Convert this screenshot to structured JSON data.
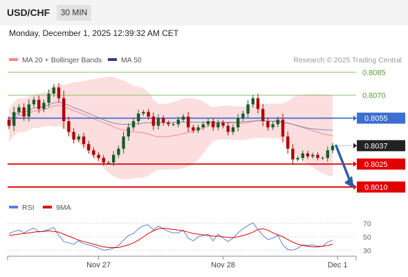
{
  "header": {
    "pair": "USD/CHF",
    "timeframe": "30 MIN",
    "timestamp": "Monday, December 1, 2025 12:39:32 AM CET"
  },
  "legend": {
    "ma20_label": "MA 20 + Bollinger Bands",
    "ma50_label": "MA 50",
    "copyright": "Research © 2025 Trading Central"
  },
  "colors": {
    "ma20": "#f28a8a",
    "band_fill": "#fcdede",
    "ma50": "#2b3f8f",
    "support": "#e00000",
    "resistance_green": "#8cc26b",
    "pivot_blue": "#3d6fd0",
    "current_price": "#222222",
    "candle_up": "#1a5c2a",
    "candle_down": "#b00000",
    "arrow": "#2f5ea8",
    "rsi": "#5b7fd6",
    "rsi_ma": "#e00000"
  },
  "chart_data": {
    "type": "candlestick",
    "price_axis": {
      "ylim": [
        0.80055,
        0.80892
      ]
    },
    "levels": [
      {
        "value": 0.8085,
        "label": "0.8085",
        "style": "resistance"
      },
      {
        "value": 0.807,
        "label": "0.8070",
        "style": "resistance"
      },
      {
        "value": 0.8055,
        "label": "0.8055",
        "style": "pivot"
      },
      {
        "value": 0.8037,
        "label": "0.8037",
        "style": "current"
      },
      {
        "value": 0.8025,
        "label": "0.8025",
        "style": "support"
      },
      {
        "value": 0.801,
        "label": "0.8010",
        "style": "support"
      }
    ],
    "x_ticks": [
      {
        "label": "Nov 27",
        "bar": 18
      },
      {
        "label": "Nov 28",
        "bar": 43
      },
      {
        "label": "Dec 1",
        "bar": 66
      }
    ],
    "closes": [
      0.805,
      0.8059,
      0.8062,
      0.8056,
      0.8064,
      0.8067,
      0.8061,
      0.8065,
      0.8071,
      0.8075,
      0.8068,
      0.8053,
      0.8046,
      0.8041,
      0.8043,
      0.8038,
      0.8034,
      0.8031,
      0.8029,
      0.8026,
      0.8026,
      0.8031,
      0.8035,
      0.8043,
      0.8049,
      0.8053,
      0.8058,
      0.8059,
      0.8056,
      0.805,
      0.8055,
      0.8052,
      0.8051,
      0.8051,
      0.8054,
      0.8056,
      0.8049,
      0.8047,
      0.8049,
      0.8051,
      0.8053,
      0.8049,
      0.8052,
      0.805,
      0.8046,
      0.8049,
      0.8055,
      0.8058,
      0.8064,
      0.8068,
      0.8061,
      0.8053,
      0.8049,
      0.8051,
      0.8054,
      0.8043,
      0.8035,
      0.8028,
      0.8029,
      0.8032,
      0.803,
      0.8031,
      0.8029,
      0.8029,
      0.8034,
      0.8037
    ],
    "projection": {
      "from": 0.8037,
      "to": 0.801
    },
    "rsi": {
      "legend": [
        "RSI",
        "9MA"
      ],
      "ylim": [
        20,
        80
      ],
      "ticks": [
        70,
        50,
        30
      ],
      "values": [
        55,
        58,
        60,
        56,
        60,
        63,
        57,
        59,
        61,
        64,
        52,
        43,
        41,
        39,
        44,
        40,
        38,
        36,
        33,
        30,
        31,
        33,
        37,
        45,
        52,
        55,
        62,
        67,
        68,
        60,
        66,
        62,
        58,
        56,
        56,
        60,
        48,
        44,
        50,
        52,
        54,
        44,
        54,
        48,
        43,
        48,
        56,
        62,
        67,
        71,
        61,
        52,
        46,
        48,
        52,
        38,
        31,
        30,
        33,
        38,
        37,
        38,
        36,
        36,
        42,
        45
      ],
      "ma": [
        52,
        53,
        54,
        55,
        56,
        57,
        58,
        58,
        59,
        58,
        57,
        54,
        51,
        48,
        45,
        43,
        41,
        39,
        37,
        35,
        34,
        34,
        34,
        36,
        38,
        41,
        45,
        50,
        55,
        59,
        62,
        63,
        62,
        61,
        60,
        59,
        57,
        55,
        54,
        53,
        52,
        51,
        51,
        50,
        49,
        49,
        50,
        52,
        54,
        57,
        61,
        62,
        60,
        56,
        53,
        50,
        46,
        42,
        39,
        37,
        36,
        35,
        35,
        36,
        37,
        39
      ]
    }
  }
}
